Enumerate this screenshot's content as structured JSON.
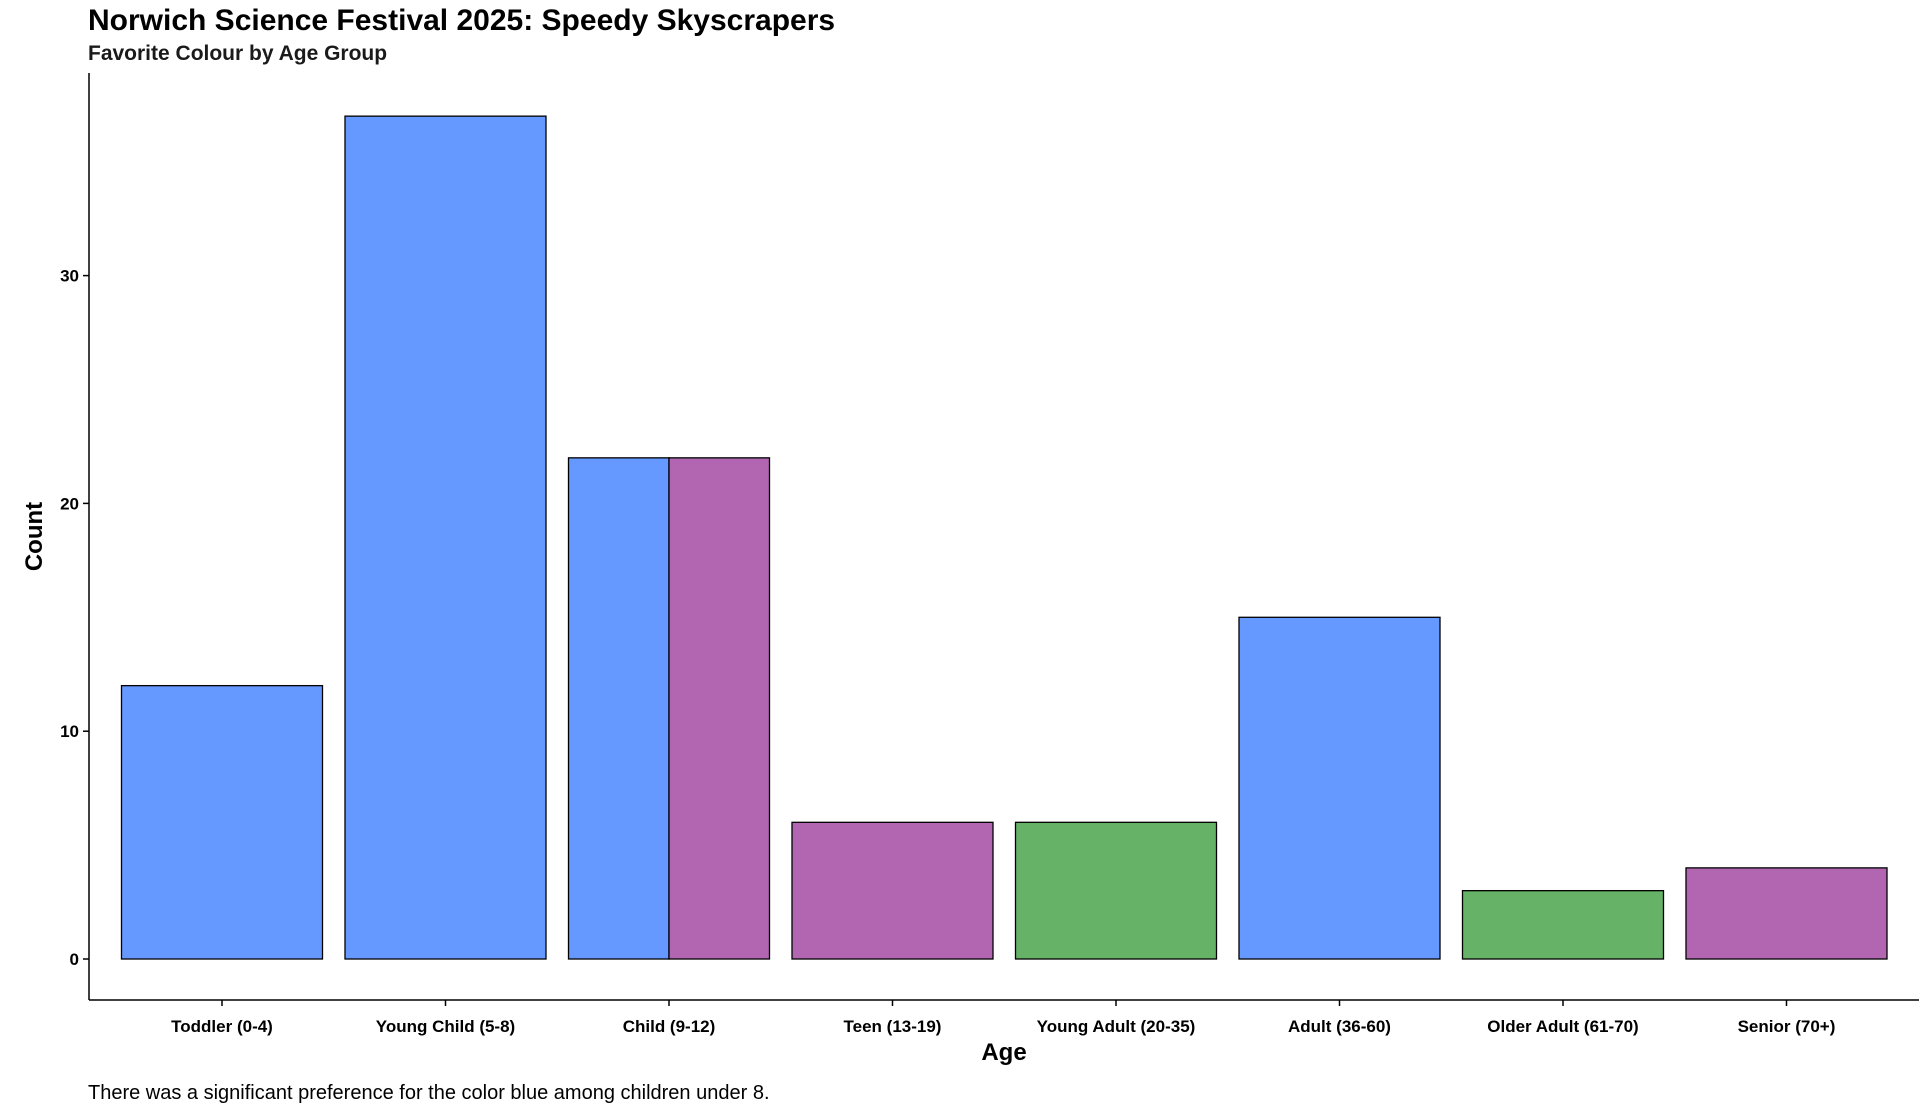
{
  "title": "Norwich Science Festival 2025: Speedy Skyscrapers",
  "subtitle": "Favorite Colour by Age Group",
  "caption": "There was a significant preference for the color blue among children under 8.",
  "colors": {
    "blue": "#6699FF",
    "purple": "#B266B2",
    "green": "#66B266",
    "outline": "#000000"
  },
  "chart_data": {
    "type": "bar",
    "xlabel": "Age",
    "ylabel": "Count",
    "ylim": [
      0,
      38
    ],
    "yticks": [
      0,
      10,
      20,
      30
    ],
    "grid": false,
    "legend": "none",
    "categories": [
      "Toddler (0-4)",
      "Young Child (5-8)",
      "Child (9-12)",
      "Teen (13-19)",
      "Young Adult (20-35)",
      "Adult (36-60)",
      "Older Adult (61-70)",
      "Senior (70+)"
    ],
    "bars": [
      [
        {
          "colour": "blue",
          "value": 12
        }
      ],
      [
        {
          "colour": "blue",
          "value": 37
        }
      ],
      [
        {
          "colour": "blue",
          "value": 22
        },
        {
          "colour": "purple",
          "value": 22
        }
      ],
      [
        {
          "colour": "purple",
          "value": 6
        }
      ],
      [
        {
          "colour": "green",
          "value": 6
        }
      ],
      [
        {
          "colour": "blue",
          "value": 15
        }
      ],
      [
        {
          "colour": "green",
          "value": 3
        }
      ],
      [
        {
          "colour": "purple",
          "value": 4
        }
      ]
    ]
  }
}
